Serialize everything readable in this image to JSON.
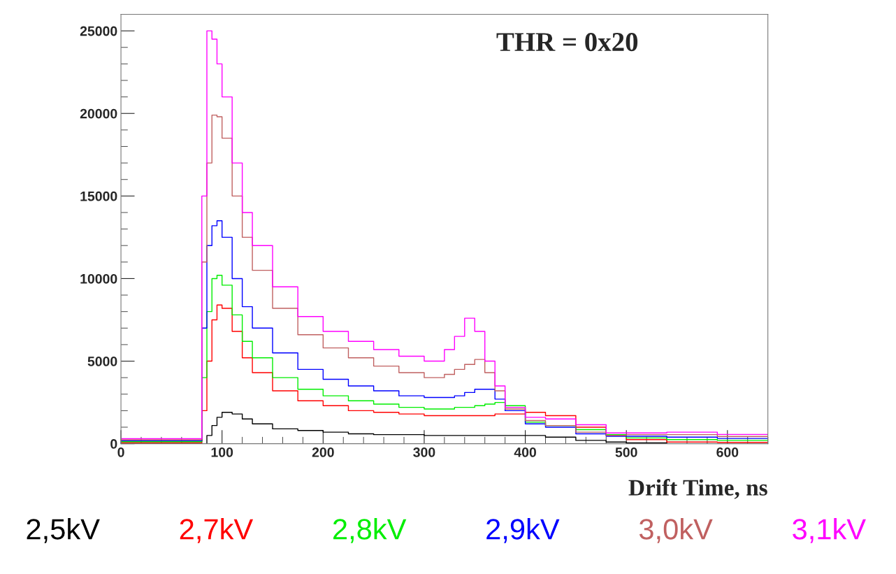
{
  "chart_data": {
    "type": "step",
    "xlabel": "Drift Time, ns",
    "annotations": [
      "THR = 0x20"
    ],
    "x": [
      0,
      75,
      80,
      85,
      90,
      95,
      100,
      110,
      120,
      130,
      150,
      175,
      200,
      225,
      250,
      275,
      300,
      320,
      330,
      340,
      350,
      360,
      370,
      380,
      400,
      420,
      450,
      480,
      500,
      540,
      590,
      640
    ],
    "series": [
      {
        "name": "2,5kV",
        "color": "#000000",
        "values": [
          0,
          0,
          0,
          500,
          1100,
          1600,
          1900,
          1800,
          1500,
          1200,
          900,
          800,
          700,
          600,
          550,
          550,
          500,
          500,
          500,
          500,
          500,
          500,
          500,
          500,
          500,
          400,
          200,
          100,
          50,
          0,
          0,
          0
        ]
      },
      {
        "name": "2,7kV",
        "color": "#ff0000",
        "values": [
          60,
          60,
          2000,
          5000,
          7500,
          8400,
          8200,
          6800,
          5200,
          4300,
          3200,
          2600,
          2300,
          2000,
          1900,
          1800,
          1700,
          1700,
          1700,
          1700,
          1700,
          1700,
          1800,
          1800,
          1900,
          1700,
          1000,
          500,
          250,
          100,
          80,
          80
        ]
      },
      {
        "name": "2,8kV",
        "color": "#00ee00",
        "values": [
          120,
          120,
          4000,
          8000,
          10000,
          10200,
          9600,
          7800,
          6200,
          5200,
          4000,
          3300,
          2900,
          2600,
          2400,
          2200,
          2100,
          2100,
          2200,
          2200,
          2300,
          2400,
          2500,
          2300,
          1300,
          1100,
          850,
          550,
          350,
          250,
          200,
          200
        ]
      },
      {
        "name": "2,9kV",
        "color": "#0000ff",
        "values": [
          180,
          180,
          7000,
          12000,
          13200,
          13500,
          12500,
          10000,
          8300,
          7000,
          5500,
          4500,
          3900,
          3500,
          3200,
          2900,
          2800,
          2800,
          2900,
          3100,
          3300,
          3300,
          2700,
          2000,
          1200,
          1000,
          600,
          450,
          450,
          400,
          320,
          320
        ]
      },
      {
        "name": "3,0kV",
        "color": "#c06060",
        "values": [
          240,
          240,
          11000,
          17000,
          19900,
          19800,
          18500,
          15000,
          12500,
          10500,
          8200,
          6600,
          5800,
          5200,
          4700,
          4300,
          4000,
          4200,
          4500,
          4800,
          5100,
          4300,
          3200,
          2100,
          1400,
          1100,
          700,
          500,
          550,
          550,
          440,
          440
        ]
      },
      {
        "name": "3,1kV",
        "color": "#ff00ff",
        "values": [
          300,
          300,
          15000,
          25000,
          24500,
          23000,
          21000,
          17000,
          14000,
          12000,
          9500,
          7700,
          6800,
          6200,
          5700,
          5300,
          5000,
          5700,
          6500,
          7600,
          6800,
          5000,
          3500,
          2200,
          1600,
          1500,
          1150,
          650,
          650,
          700,
          560,
          560
        ]
      }
    ],
    "xlim": [
      0,
      640
    ],
    "ylim": [
      0,
      26000
    ],
    "xticks": [
      0,
      100,
      200,
      300,
      400,
      500,
      600
    ],
    "yticks": [
      0,
      5000,
      10000,
      15000,
      20000,
      25000
    ],
    "grid": false,
    "legend": "bottom"
  }
}
